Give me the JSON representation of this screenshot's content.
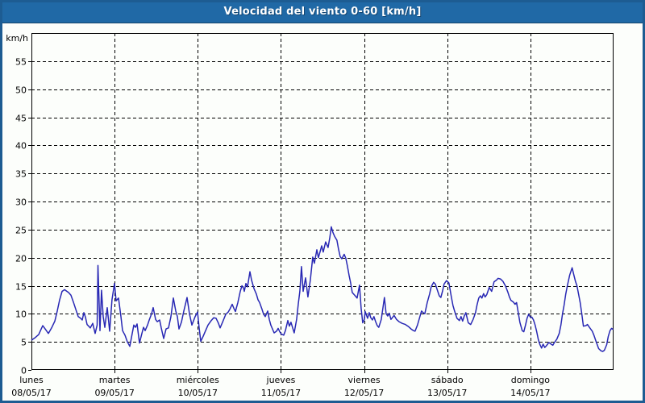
{
  "window": {
    "title": "Velocidad del viento 0-60 [km/h]"
  },
  "colors": {
    "titlebar_bg": "#2069a6",
    "titlebar_edge": "#15456b",
    "window_border": "#1d5c92",
    "window_bg": "#fcfefb",
    "plot_frame": "#000000",
    "grid": "#000000",
    "axis_text": "#000000",
    "series_line": "#2828b4",
    "title_text": "#ffffff"
  },
  "chart_data": {
    "type": "line",
    "title": "Velocidad del viento 0-60 [km/h]",
    "ylabel": "km/h",
    "unit": "km/h",
    "ylim": [
      0,
      60
    ],
    "y_ticks": [
      0,
      5,
      10,
      15,
      20,
      25,
      30,
      35,
      40,
      45,
      50,
      55
    ],
    "xlim_days": [
      0,
      7
    ],
    "grid": "dashed",
    "legend": "none",
    "x_days": [
      {
        "name": "lunes",
        "date": "08/05/17"
      },
      {
        "name": "martes",
        "date": "09/05/17"
      },
      {
        "name": "miércoles",
        "date": "10/05/17"
      },
      {
        "name": "jueves",
        "date": "11/05/17"
      },
      {
        "name": "viernes",
        "date": "12/05/17"
      },
      {
        "name": "sábado",
        "date": "13/05/17"
      },
      {
        "name": "domingo",
        "date": "14/05/17"
      }
    ],
    "series": [
      {
        "name": "velocidad del viento",
        "points": [
          [
            0.0,
            5.3
          ],
          [
            0.048,
            5.8
          ],
          [
            0.087,
            6.3
          ],
          [
            0.136,
            7.9
          ],
          [
            0.165,
            7.3
          ],
          [
            0.204,
            6.5
          ],
          [
            0.242,
            7.5
          ],
          [
            0.281,
            8.7
          ],
          [
            0.31,
            10.5
          ],
          [
            0.339,
            12.5
          ],
          [
            0.368,
            14.0
          ],
          [
            0.398,
            14.3
          ],
          [
            0.427,
            14.0
          ],
          [
            0.446,
            13.8
          ],
          [
            0.475,
            13.3
          ],
          [
            0.504,
            12.1
          ],
          [
            0.533,
            10.8
          ],
          [
            0.562,
            9.5
          ],
          [
            0.591,
            9.2
          ],
          [
            0.611,
            8.9
          ],
          [
            0.63,
            10.2
          ],
          [
            0.65,
            9.4
          ],
          [
            0.669,
            8.1
          ],
          [
            0.688,
            7.8
          ],
          [
            0.708,
            7.5
          ],
          [
            0.737,
            8.3
          ],
          [
            0.766,
            6.5
          ],
          [
            0.79,
            8.0
          ],
          [
            0.8,
            18.6
          ],
          [
            0.824,
            7.0
          ],
          [
            0.843,
            14.2
          ],
          [
            0.863,
            9.5
          ],
          [
            0.882,
            7.6
          ],
          [
            0.911,
            11.1
          ],
          [
            0.94,
            6.9
          ],
          [
            0.969,
            12.5
          ],
          [
            0.999,
            15.4
          ],
          [
            1.018,
            12.3
          ],
          [
            1.047,
            12.8
          ],
          [
            1.076,
            9.5
          ],
          [
            1.096,
            7.0
          ],
          [
            1.125,
            6.2
          ],
          [
            1.154,
            5.0
          ],
          [
            1.183,
            4.2
          ],
          [
            1.212,
            6.5
          ],
          [
            1.231,
            8.0
          ],
          [
            1.251,
            7.6
          ],
          [
            1.27,
            8.2
          ],
          [
            1.299,
            4.8
          ],
          [
            1.328,
            6.5
          ],
          [
            1.348,
            7.6
          ],
          [
            1.367,
            7.0
          ],
          [
            1.396,
            8.0
          ],
          [
            1.416,
            8.9
          ],
          [
            1.445,
            10.0
          ],
          [
            1.464,
            11.1
          ],
          [
            1.493,
            9.0
          ],
          [
            1.512,
            8.6
          ],
          [
            1.542,
            8.9
          ],
          [
            1.561,
            7.5
          ],
          [
            1.59,
            5.6
          ],
          [
            1.619,
            7.3
          ],
          [
            1.648,
            7.5
          ],
          [
            1.677,
            9.5
          ],
          [
            1.706,
            12.8
          ],
          [
            1.735,
            10.5
          ],
          [
            1.755,
            9.5
          ],
          [
            1.774,
            7.3
          ],
          [
            1.803,
            8.5
          ],
          [
            1.832,
            10.5
          ],
          [
            1.871,
            12.9
          ],
          [
            1.9,
            10.0
          ],
          [
            1.929,
            8.0
          ],
          [
            1.968,
            9.5
          ],
          [
            1.997,
            10.3
          ],
          [
            2.017,
            7.5
          ],
          [
            2.036,
            5.1
          ],
          [
            2.065,
            6.0
          ],
          [
            2.094,
            7.0
          ],
          [
            2.123,
            8.0
          ],
          [
            2.162,
            8.8
          ],
          [
            2.191,
            9.3
          ],
          [
            2.22,
            9.2
          ],
          [
            2.249,
            8.3
          ],
          [
            2.269,
            7.5
          ],
          [
            2.298,
            8.5
          ],
          [
            2.337,
            9.9
          ],
          [
            2.366,
            10.3
          ],
          [
            2.385,
            10.8
          ],
          [
            2.414,
            11.7
          ],
          [
            2.434,
            11.0
          ],
          [
            2.453,
            10.4
          ],
          [
            2.482,
            12.0
          ],
          [
            2.511,
            14.0
          ],
          [
            2.531,
            15.0
          ],
          [
            2.55,
            14.6
          ],
          [
            2.56,
            14.0
          ],
          [
            2.579,
            15.4
          ],
          [
            2.598,
            14.8
          ],
          [
            2.627,
            17.5
          ],
          [
            2.647,
            16.0
          ],
          [
            2.676,
            14.5
          ],
          [
            2.705,
            13.5
          ],
          [
            2.724,
            12.5
          ],
          [
            2.744,
            12.0
          ],
          [
            2.773,
            10.8
          ],
          [
            2.792,
            9.9
          ],
          [
            2.812,
            9.5
          ],
          [
            2.841,
            10.5
          ],
          [
            2.86,
            9.0
          ],
          [
            2.879,
            8.0
          ],
          [
            2.918,
            6.6
          ],
          [
            2.947,
            6.9
          ],
          [
            2.967,
            7.4
          ],
          [
            2.986,
            6.8
          ],
          [
            3.005,
            6.4
          ],
          [
            3.034,
            6.2
          ],
          [
            3.054,
            7.0
          ],
          [
            3.083,
            8.8
          ],
          [
            3.102,
            7.8
          ],
          [
            3.121,
            8.5
          ],
          [
            3.141,
            7.5
          ],
          [
            3.16,
            6.6
          ],
          [
            3.189,
            9.0
          ],
          [
            3.209,
            11.8
          ],
          [
            3.228,
            14.0
          ],
          [
            3.247,
            18.4
          ],
          [
            3.267,
            14.0
          ],
          [
            3.296,
            16.4
          ],
          [
            3.325,
            13.0
          ],
          [
            3.354,
            16.0
          ],
          [
            3.383,
            20.1
          ],
          [
            3.402,
            19.0
          ],
          [
            3.432,
            21.4
          ],
          [
            3.451,
            20.0
          ],
          [
            3.47,
            21.0
          ],
          [
            3.49,
            22.1
          ],
          [
            3.509,
            21.0
          ],
          [
            3.538,
            22.8
          ],
          [
            3.567,
            21.8
          ],
          [
            3.587,
            23.5
          ],
          [
            3.606,
            25.5
          ],
          [
            3.625,
            24.5
          ],
          [
            3.645,
            23.8
          ],
          [
            3.674,
            23.1
          ],
          [
            3.693,
            21.5
          ],
          [
            3.712,
            20.2
          ],
          [
            3.732,
            19.8
          ],
          [
            3.761,
            20.6
          ],
          [
            3.78,
            19.9
          ],
          [
            3.8,
            18.5
          ],
          [
            3.819,
            16.9
          ],
          [
            3.838,
            15.5
          ],
          [
            3.858,
            13.8
          ],
          [
            3.887,
            13.3
          ],
          [
            3.916,
            12.8
          ],
          [
            3.945,
            15.1
          ],
          [
            3.964,
            11.0
          ],
          [
            3.984,
            8.4
          ],
          [
            4.003,
            9.0
          ],
          [
            4.013,
            10.4
          ],
          [
            4.042,
            9.2
          ],
          [
            4.061,
            10.2
          ],
          [
            4.081,
            9.3
          ],
          [
            4.1,
            8.9
          ],
          [
            4.119,
            9.5
          ],
          [
            4.139,
            8.6
          ],
          [
            4.158,
            7.9
          ],
          [
            4.177,
            7.6
          ],
          [
            4.207,
            9.0
          ],
          [
            4.226,
            11.0
          ],
          [
            4.245,
            12.9
          ],
          [
            4.265,
            10.0
          ],
          [
            4.284,
            9.6
          ],
          [
            4.303,
            10.1
          ],
          [
            4.323,
            9.0
          ],
          [
            4.361,
            9.7
          ],
          [
            4.39,
            9.0
          ],
          [
            4.42,
            8.6
          ],
          [
            4.458,
            8.3
          ],
          [
            4.497,
            8.1
          ],
          [
            4.536,
            7.7
          ],
          [
            4.565,
            7.3
          ],
          [
            4.594,
            7.0
          ],
          [
            4.613,
            6.9
          ],
          [
            4.642,
            8.0
          ],
          [
            4.671,
            9.5
          ],
          [
            4.691,
            10.5
          ],
          [
            4.71,
            10.2
          ],
          [
            4.73,
            10.0
          ],
          [
            4.759,
            12.0
          ],
          [
            4.788,
            13.5
          ],
          [
            4.807,
            14.8
          ],
          [
            4.836,
            15.6
          ],
          [
            4.856,
            15.3
          ],
          [
            4.875,
            14.5
          ],
          [
            4.904,
            13.2
          ],
          [
            4.923,
            12.9
          ],
          [
            4.943,
            14.0
          ],
          [
            4.962,
            15.3
          ],
          [
            4.991,
            15.9
          ],
          [
            5.02,
            15.5
          ],
          [
            5.049,
            13.0
          ],
          [
            5.069,
            11.5
          ],
          [
            5.088,
            10.5
          ],
          [
            5.117,
            9.2
          ],
          [
            5.146,
            8.8
          ],
          [
            5.166,
            9.5
          ],
          [
            5.185,
            8.7
          ],
          [
            5.204,
            9.6
          ],
          [
            5.224,
            10.2
          ],
          [
            5.253,
            8.4
          ],
          [
            5.282,
            8.1
          ],
          [
            5.311,
            9.0
          ],
          [
            5.34,
            10.2
          ],
          [
            5.359,
            11.6
          ],
          [
            5.379,
            12.8
          ],
          [
            5.398,
            13.2
          ],
          [
            5.417,
            12.8
          ],
          [
            5.437,
            13.6
          ],
          [
            5.456,
            13.0
          ],
          [
            5.475,
            13.4
          ],
          [
            5.505,
            14.7
          ],
          [
            5.534,
            14.0
          ],
          [
            5.563,
            15.7
          ],
          [
            5.592,
            16.0
          ],
          [
            5.611,
            16.3
          ],
          [
            5.64,
            16.2
          ],
          [
            5.669,
            15.8
          ],
          [
            5.699,
            15.0
          ],
          [
            5.728,
            13.9
          ],
          [
            5.747,
            13.0
          ],
          [
            5.766,
            12.4
          ],
          [
            5.795,
            12.1
          ],
          [
            5.815,
            11.7
          ],
          [
            5.834,
            12.0
          ],
          [
            5.873,
            8.5
          ],
          [
            5.902,
            7.0
          ],
          [
            5.921,
            6.8
          ],
          [
            5.941,
            8.0
          ],
          [
            5.96,
            9.2
          ],
          [
            5.979,
            9.9
          ],
          [
            5.999,
            9.4
          ],
          [
            6.018,
            9.4
          ],
          [
            6.037,
            8.9
          ],
          [
            6.057,
            8.0
          ],
          [
            6.076,
            6.8
          ],
          [
            6.095,
            5.4
          ],
          [
            6.115,
            4.5
          ],
          [
            6.134,
            3.9
          ],
          [
            6.153,
            4.6
          ],
          [
            6.173,
            4.0
          ],
          [
            6.192,
            4.3
          ],
          [
            6.221,
            4.9
          ],
          [
            6.25,
            4.6
          ],
          [
            6.27,
            4.4
          ],
          [
            6.289,
            4.9
          ],
          [
            6.318,
            5.5
          ],
          [
            6.347,
            6.5
          ],
          [
            6.367,
            8.0
          ],
          [
            6.386,
            10.0
          ],
          [
            6.405,
            11.5
          ],
          [
            6.425,
            13.5
          ],
          [
            6.444,
            15.0
          ],
          [
            6.473,
            16.9
          ],
          [
            6.502,
            18.2
          ],
          [
            6.521,
            17.0
          ],
          [
            6.541,
            15.8
          ],
          [
            6.56,
            15.0
          ],
          [
            6.579,
            13.5
          ],
          [
            6.599,
            12.0
          ],
          [
            6.618,
            10.0
          ],
          [
            6.637,
            7.8
          ],
          [
            6.667,
            7.9
          ],
          [
            6.686,
            8.1
          ],
          [
            6.705,
            7.7
          ],
          [
            6.724,
            7.3
          ],
          [
            6.744,
            6.9
          ],
          [
            6.763,
            6.2
          ],
          [
            6.792,
            5.0
          ],
          [
            6.821,
            3.8
          ],
          [
            6.85,
            3.4
          ],
          [
            6.87,
            3.3
          ],
          [
            6.889,
            3.5
          ],
          [
            6.918,
            4.5
          ],
          [
            6.937,
            6.0
          ],
          [
            6.957,
            7.0
          ],
          [
            6.976,
            7.4
          ],
          [
            6.995,
            7.2
          ]
        ]
      }
    ]
  }
}
